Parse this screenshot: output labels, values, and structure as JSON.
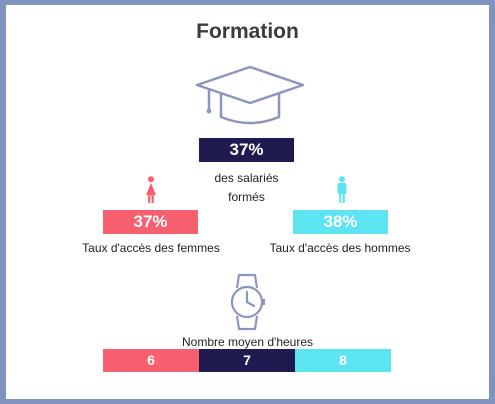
{
  "title": "Formation",
  "trained": {
    "percent": "37%",
    "label_line1": "des salariés",
    "label_line2": "formés"
  },
  "women": {
    "percent": "37%",
    "label": "Taux d'accès des femmes"
  },
  "men": {
    "percent": "38%",
    "label": "Taux d'accès des hommes"
  },
  "hours": {
    "label": "Nombre moyen d'heures",
    "women": "6",
    "all": "7",
    "men": "8"
  },
  "colors": {
    "navy": "#1f1a4f",
    "coral": "#f7606e",
    "cyan": "#5ce5f0",
    "frame": "#7f93c0",
    "icon_stroke": "#8a96c0"
  },
  "icons": {
    "cap": "graduation-cap-icon",
    "woman": "woman-icon",
    "man": "man-icon",
    "watch": "wristwatch-icon"
  }
}
